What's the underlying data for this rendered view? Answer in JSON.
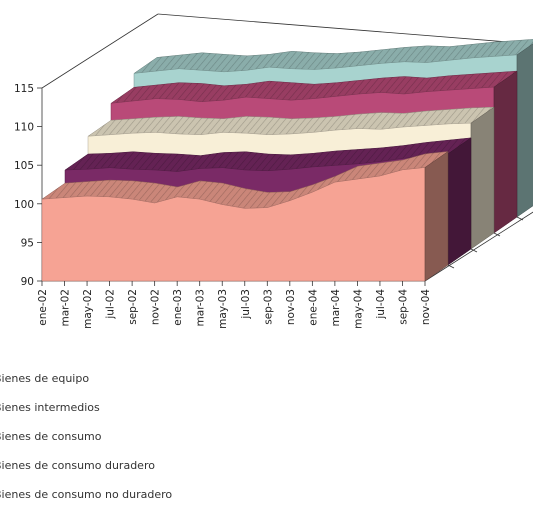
{
  "chart_data": {
    "type": "area",
    "three_d": true,
    "grid": false,
    "legend_position": "bottom-left",
    "categories": [
      "ene-02",
      "mar-02",
      "may-02",
      "jul-02",
      "sep-02",
      "nov-02",
      "ene-03",
      "mar-03",
      "may-03",
      "jul-03",
      "sep-03",
      "nov-03",
      "ene-04",
      "mar-04",
      "may-04",
      "jul-04",
      "sep-04",
      "nov-04"
    ],
    "ylim": [
      90,
      115
    ],
    "yticks": [
      "90",
      "95",
      "100",
      "105",
      "110",
      "115"
    ],
    "series": [
      {
        "name": "Bienes de equipo",
        "color": "#f6a394",
        "values": [
          100.6,
          100.8,
          101.0,
          100.9,
          100.6,
          100.1,
          100.9,
          100.6,
          99.9,
          99.4,
          99.5,
          100.4,
          101.5,
          102.8,
          103.2,
          103.6,
          104.4,
          104.7
        ]
      },
      {
        "name": "Bienes intermedios",
        "color": "#7a2a66",
        "values": [
          102.3,
          102.4,
          102.6,
          102.4,
          102.3,
          102.1,
          102.5,
          102.6,
          102.3,
          102.2,
          102.4,
          102.7,
          102.9,
          103.1,
          103.4,
          103.8,
          104.1,
          104.4
        ]
      },
      {
        "name": "Bienes de consumo",
        "color": "#f8efd7",
        "values": [
          104.6,
          104.8,
          105.0,
          105.1,
          104.9,
          104.8,
          105.1,
          105.0,
          104.8,
          104.9,
          105.1,
          105.4,
          105.6,
          105.5,
          105.8,
          106.0,
          106.2,
          106.3
        ]
      },
      {
        "name": "Bienes de consumo duradero",
        "color": "#b94a78",
        "values": [
          106.8,
          107.1,
          107.4,
          107.3,
          107.0,
          107.2,
          107.6,
          107.4,
          107.2,
          107.4,
          107.7,
          108.0,
          108.2,
          108.0,
          108.3,
          108.5,
          108.7,
          108.9
        ]
      },
      {
        "name": "Bienes de consumo no duradero",
        "color": "#a8d3cf",
        "values": [
          108.6,
          108.9,
          109.2,
          109.0,
          108.8,
          109.0,
          109.4,
          109.2,
          109.1,
          109.3,
          109.6,
          109.9,
          110.1,
          110.0,
          110.3,
          110.6,
          110.8,
          111.0
        ]
      }
    ]
  }
}
